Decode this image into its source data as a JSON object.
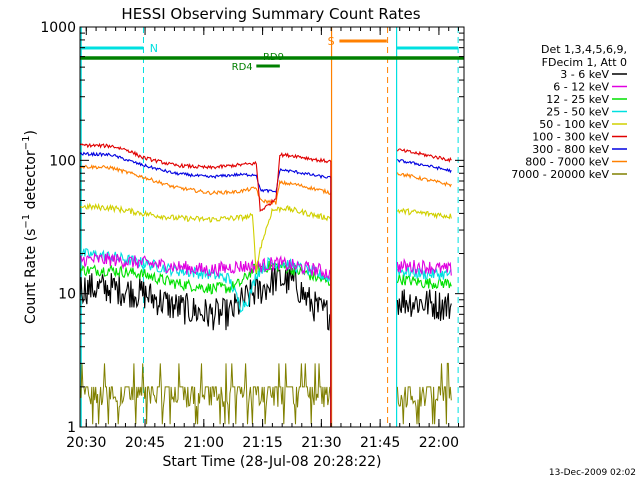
{
  "chart_data": {
    "type": "line",
    "title": "HESSI Observing Summary Count Rates",
    "xlabel": "Start Time (28-Jul-08 20:28:22)",
    "ylabel": "Count Rate (s⁻¹ detector⁻¹)",
    "ylabel_main": "Count Rate (s",
    "ylabel_mid": " detector",
    "ylabel_end": ")",
    "ylabel_sup": "−1",
    "yscale": "log",
    "ylim": [
      1,
      1000
    ],
    "xlim_minutes": [
      0,
      98
    ],
    "x_tick_labels": [
      "20:30",
      "20:45",
      "21:00",
      "21:15",
      "21:30",
      "21:45",
      "22:00"
    ],
    "x_tick_minutes": [
      1.6,
      16.6,
      31.6,
      46.6,
      61.6,
      76.6,
      91.6
    ],
    "y_tick_labels": [
      "1",
      "10",
      "100",
      "1000"
    ],
    "y_tick_values": [
      1,
      10,
      100,
      1000
    ],
    "legend_position": "right",
    "legend_header": [
      "Det 1,3,4,5,6,9,",
      "FDecim 1, Att 0"
    ],
    "series": [
      {
        "name": "3 - 6 keV",
        "color": "#000000",
        "anchors": [
          [
            0,
            11
          ],
          [
            8,
            11
          ],
          [
            16,
            10
          ],
          [
            24,
            8
          ],
          [
            33,
            7
          ],
          [
            38,
            7
          ],
          [
            40,
            8
          ],
          [
            42,
            9
          ],
          [
            44,
            10
          ],
          [
            47,
            11
          ],
          [
            50,
            13
          ],
          [
            55,
            12
          ],
          [
            58,
            9
          ],
          [
            61,
            7.5
          ],
          [
            64,
            7
          ],
          [
            79,
            null
          ],
          [
            81,
            9
          ],
          [
            88,
            8.5
          ],
          [
            95,
            8
          ]
        ]
      },
      {
        "name": "6 - 12 keV",
        "color": "#e000e0",
        "anchors": [
          [
            0,
            18
          ],
          [
            8,
            18
          ],
          [
            16,
            17
          ],
          [
            24,
            16
          ],
          [
            33,
            15
          ],
          [
            40,
            16
          ],
          [
            45,
            16
          ],
          [
            50,
            17
          ],
          [
            55,
            16
          ],
          [
            61,
            15
          ],
          [
            64,
            14
          ],
          [
            79,
            null
          ],
          [
            81,
            16
          ],
          [
            88,
            16
          ],
          [
            95,
            15
          ]
        ]
      },
      {
        "name": "12 - 25 keV",
        "color": "#00e000",
        "anchors": [
          [
            0,
            15
          ],
          [
            8,
            15
          ],
          [
            16,
            14
          ],
          [
            24,
            12
          ],
          [
            33,
            11
          ],
          [
            38,
            11
          ],
          [
            41,
            12
          ],
          [
            44,
            15
          ],
          [
            48,
            16
          ],
          [
            52,
            16
          ],
          [
            58,
            14
          ],
          [
            61,
            13
          ],
          [
            64,
            12
          ],
          [
            79,
            null
          ],
          [
            81,
            13
          ],
          [
            88,
            12
          ],
          [
            95,
            12
          ]
        ]
      },
      {
        "name": "25 - 50 keV",
        "color": "#00e0e0",
        "anchors": [
          [
            0,
            20
          ],
          [
            8,
            19
          ],
          [
            16,
            17
          ],
          [
            24,
            15
          ],
          [
            33,
            14
          ],
          [
            38,
            13
          ],
          [
            41,
            8
          ],
          [
            43,
            9
          ],
          [
            45,
            14
          ],
          [
            48,
            17
          ],
          [
            52,
            17
          ],
          [
            58,
            15
          ],
          [
            61,
            14
          ],
          [
            64,
            13
          ],
          [
            79,
            null
          ],
          [
            81,
            15
          ],
          [
            88,
            14
          ],
          [
            95,
            14
          ]
        ]
      },
      {
        "name": "50 - 100 keV",
        "color": "#d0d000",
        "anchors": [
          [
            0,
            45
          ],
          [
            8,
            44
          ],
          [
            16,
            40
          ],
          [
            24,
            37
          ],
          [
            33,
            36
          ],
          [
            40,
            37
          ],
          [
            44,
            38
          ],
          [
            45,
            15
          ],
          [
            46,
            22
          ],
          [
            49,
            42
          ],
          [
            52,
            44
          ],
          [
            58,
            40
          ],
          [
            61,
            38
          ],
          [
            64,
            37
          ],
          [
            79,
            null
          ],
          [
            81,
            42
          ],
          [
            88,
            40
          ],
          [
            95,
            38
          ]
        ]
      },
      {
        "name": "100 - 300 keV",
        "color": "#e00000",
        "anchors": [
          [
            0,
            130
          ],
          [
            8,
            128
          ],
          [
            12,
            120
          ],
          [
            16,
            105
          ],
          [
            24,
            92
          ],
          [
            33,
            88
          ],
          [
            40,
            92
          ],
          [
            45,
            95
          ],
          [
            46,
            42
          ],
          [
            48,
            46
          ],
          [
            50,
            52
          ],
          [
            51,
            110
          ],
          [
            55,
            108
          ],
          [
            61,
            100
          ],
          [
            64,
            98
          ],
          [
            79,
            null
          ],
          [
            81,
            120
          ],
          [
            88,
            110
          ],
          [
            95,
            100
          ]
        ]
      },
      {
        "name": "300 - 800 keV",
        "color": "#0000e0",
        "anchors": [
          [
            0,
            112
          ],
          [
            8,
            110
          ],
          [
            16,
            92
          ],
          [
            24,
            80
          ],
          [
            33,
            75
          ],
          [
            40,
            78
          ],
          [
            45,
            78
          ],
          [
            46,
            60
          ],
          [
            50,
            58
          ],
          [
            51,
            85
          ],
          [
            55,
            82
          ],
          [
            61,
            76
          ],
          [
            64,
            74
          ],
          [
            79,
            null
          ],
          [
            81,
            100
          ],
          [
            88,
            92
          ],
          [
            95,
            83
          ]
        ]
      },
      {
        "name": "800 - 7000 keV",
        "color": "#ff8000",
        "anchors": [
          [
            0,
            90
          ],
          [
            8,
            88
          ],
          [
            16,
            75
          ],
          [
            24,
            63
          ],
          [
            33,
            57
          ],
          [
            40,
            58
          ],
          [
            45,
            62
          ],
          [
            46,
            50
          ],
          [
            50,
            48
          ],
          [
            51,
            68
          ],
          [
            55,
            66
          ],
          [
            61,
            60
          ],
          [
            64,
            57
          ],
          [
            79,
            null
          ],
          [
            81,
            80
          ],
          [
            88,
            72
          ],
          [
            95,
            65
          ]
        ]
      },
      {
        "name": "7000 - 20000 keV",
        "color": "#808000",
        "anchors": [
          [
            0,
            1.8
          ],
          [
            8,
            1.8
          ],
          [
            16,
            1.7
          ],
          [
            24,
            1.6
          ],
          [
            33,
            1.6
          ],
          [
            40,
            1.6
          ],
          [
            45,
            1.7
          ],
          [
            50,
            1.8
          ],
          [
            55,
            1.8
          ],
          [
            61,
            1.7
          ],
          [
            64,
            1.7
          ],
          [
            79,
            null
          ],
          [
            81,
            1.8
          ],
          [
            88,
            1.8
          ],
          [
            95,
            1.8
          ]
        ]
      }
    ],
    "annotations": [
      {
        "text": "N",
        "color": "#00e0e0"
      },
      {
        "text": "S",
        "color": "#ff8000"
      },
      {
        "text": "RD9",
        "color": "#008000"
      },
      {
        "text": "RD4",
        "color": "#008000"
      }
    ],
    "timestamp": "13-Dec-2009 02:02"
  }
}
